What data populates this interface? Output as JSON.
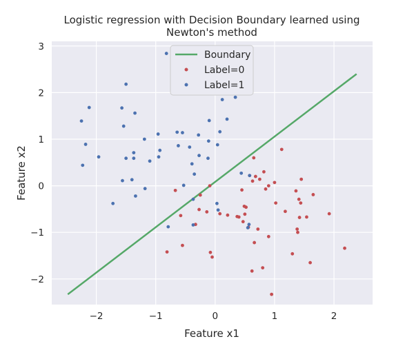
{
  "chart_data": {
    "type": "scatter",
    "title_lines": [
      "Logistic regression with Decision Boundary learned using",
      "Newton's method"
    ],
    "xlabel": "Feature x1",
    "ylabel": "Feature x2",
    "xlim": [
      -2.75,
      2.65
    ],
    "ylim": [
      -2.55,
      3.1
    ],
    "xticks": [
      -2,
      -1,
      0,
      1,
      2
    ],
    "xtick_labels": [
      "−2",
      "−1",
      "0",
      "1",
      "2"
    ],
    "yticks": [
      -2,
      -1,
      0,
      1,
      2,
      3
    ],
    "ytick_labels": [
      "−2",
      "−1",
      "0",
      "1",
      "2",
      "3"
    ],
    "grid": true,
    "background": "#eaeaf2",
    "legend_position": "upper center",
    "boundary": {
      "name": "Boundary",
      "color": "#55a868",
      "x": [
        -2.48,
        2.38
      ],
      "y": [
        -2.33,
        2.4
      ]
    },
    "series": [
      {
        "name": "Label=0",
        "color": "#c44e52",
        "points": [
          [
            -0.67,
            -0.1
          ],
          [
            -0.81,
            -1.42
          ],
          [
            -0.58,
            -0.64
          ],
          [
            -0.55,
            -1.28
          ],
          [
            -0.33,
            -0.83
          ],
          [
            -0.25,
            -0.2
          ],
          [
            -0.27,
            -0.51
          ],
          [
            -0.14,
            -0.56
          ],
          [
            -0.09,
            0.0
          ],
          [
            -0.08,
            -1.43
          ],
          [
            -0.05,
            -1.53
          ],
          [
            0.08,
            -0.6
          ],
          [
            0.21,
            -0.63
          ],
          [
            0.37,
            -0.66
          ],
          [
            0.4,
            -0.67
          ],
          [
            0.45,
            -0.09
          ],
          [
            0.47,
            -0.77
          ],
          [
            0.49,
            -0.44
          ],
          [
            0.5,
            -0.61
          ],
          [
            0.52,
            -0.46
          ],
          [
            0.56,
            -0.89
          ],
          [
            0.58,
            0.22
          ],
          [
            0.62,
            -1.83
          ],
          [
            0.65,
            0.6
          ],
          [
            0.63,
            0.1
          ],
          [
            0.68,
            0.2
          ],
          [
            0.66,
            -1.22
          ],
          [
            0.72,
            -0.93
          ],
          [
            0.75,
            0.14
          ],
          [
            0.82,
            0.3
          ],
          [
            0.8,
            -1.76
          ],
          [
            0.85,
            -0.07
          ],
          [
            0.9,
            0.0
          ],
          [
            0.9,
            -1.09
          ],
          [
            0.95,
            -2.33
          ],
          [
            1.0,
            0.07
          ],
          [
            1.02,
            -0.37
          ],
          [
            1.12,
            0.78
          ],
          [
            1.18,
            -0.55
          ],
          [
            1.3,
            -1.46
          ],
          [
            1.36,
            -0.11
          ],
          [
            1.38,
            -0.93
          ],
          [
            1.39,
            -1.0
          ],
          [
            1.41,
            -0.29
          ],
          [
            1.42,
            -0.68
          ],
          [
            1.44,
            -0.37
          ],
          [
            1.45,
            0.14
          ],
          [
            1.54,
            -0.67
          ],
          [
            1.6,
            -1.65
          ],
          [
            1.65,
            -0.19
          ],
          [
            1.92,
            -0.6
          ],
          [
            2.18,
            -1.34
          ]
        ]
      },
      {
        "name": "Label=1",
        "color": "#4c72b0",
        "points": [
          [
            -2.25,
            1.39
          ],
          [
            -2.23,
            0.44
          ],
          [
            -2.18,
            0.89
          ],
          [
            -2.12,
            1.68
          ],
          [
            -1.96,
            0.62
          ],
          [
            -1.72,
            -0.38
          ],
          [
            -1.57,
            1.67
          ],
          [
            -1.56,
            0.11
          ],
          [
            -1.54,
            1.28
          ],
          [
            -1.5,
            2.18
          ],
          [
            -1.5,
            0.59
          ],
          [
            -1.4,
            0.13
          ],
          [
            -1.37,
            0.71
          ],
          [
            -1.37,
            0.59
          ],
          [
            -1.35,
            1.56
          ],
          [
            -1.34,
            -0.22
          ],
          [
            -1.19,
            1.0
          ],
          [
            -1.18,
            -0.06
          ],
          [
            -1.1,
            0.53
          ],
          [
            -0.96,
            1.11
          ],
          [
            -0.95,
            0.62
          ],
          [
            -0.93,
            0.76
          ],
          [
            -0.82,
            2.84
          ],
          [
            -0.79,
            -0.88
          ],
          [
            -0.64,
            1.15
          ],
          [
            -0.62,
            0.86
          ],
          [
            -0.55,
            1.14
          ],
          [
            -0.53,
            0.01
          ],
          [
            -0.43,
            0.83
          ],
          [
            -0.39,
            0.47
          ],
          [
            -0.37,
            -0.29
          ],
          [
            -0.37,
            -0.84
          ],
          [
            -0.35,
            0.25
          ],
          [
            -0.28,
            1.09
          ],
          [
            -0.27,
            0.65
          ],
          [
            -0.12,
            0.59
          ],
          [
            -0.11,
            0.96
          ],
          [
            -0.1,
            1.4
          ],
          [
            0.03,
            -0.38
          ],
          [
            0.04,
            0.88
          ],
          [
            0.05,
            -0.52
          ],
          [
            0.08,
            1.16
          ],
          [
            0.12,
            1.85
          ],
          [
            0.2,
            1.43
          ],
          [
            0.34,
            1.9
          ],
          [
            0.44,
            0.27
          ],
          [
            0.55,
            -0.9
          ],
          [
            0.57,
            -0.83
          ],
          [
            0.58,
            0.22
          ]
        ]
      }
    ]
  }
}
